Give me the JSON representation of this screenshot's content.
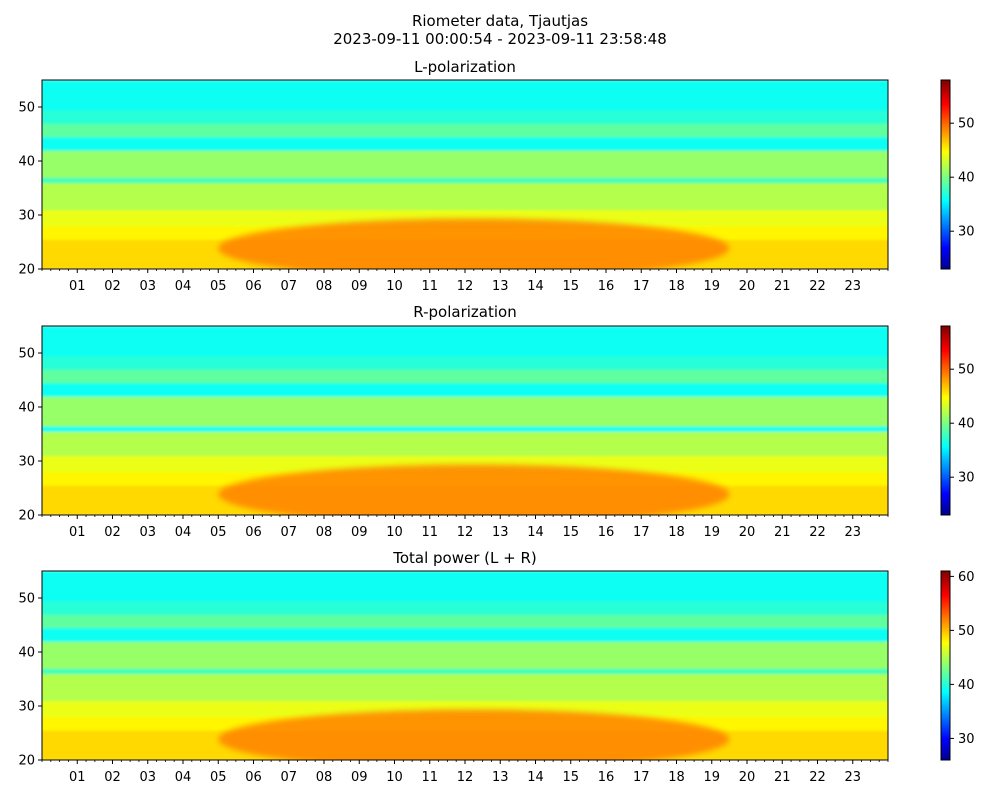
{
  "suptitle": {
    "line1": "Riometer data, Tjautjas",
    "line2": "2023-09-11 00:00:54 - 2023-09-11 23:58:48"
  },
  "chart_data": [
    {
      "type": "heatmap",
      "title": "L-polarization",
      "xlabel": "",
      "ylabel": "",
      "x_ticks": [
        "01",
        "02",
        "03",
        "04",
        "05",
        "06",
        "07",
        "08",
        "09",
        "10",
        "11",
        "12",
        "13",
        "14",
        "15",
        "16",
        "17",
        "18",
        "19",
        "20",
        "21",
        "22",
        "23"
      ],
      "xlim_hours": [
        0,
        24
      ],
      "y_ticks": [
        20,
        30,
        40,
        50
      ],
      "ylim": [
        20,
        55
      ],
      "colorbar": {
        "colormap": "jet",
        "range": [
          23,
          58
        ],
        "ticks": [
          30,
          40,
          50
        ]
      },
      "band_values_by_y": [
        {
          "y": [
            20,
            25.5
          ],
          "value": 46
        },
        {
          "y": [
            25.5,
            28
          ],
          "value": 45
        },
        {
          "y": [
            28,
            31
          ],
          "value": 44
        },
        {
          "y": [
            31,
            36
          ],
          "value": 42
        },
        {
          "y": [
            36,
            37
          ],
          "value": 38
        },
        {
          "y": [
            37,
            42
          ],
          "value": 41
        },
        {
          "y": [
            42,
            44.5
          ],
          "value": 36
        },
        {
          "y": [
            44.5,
            47
          ],
          "value": 39
        },
        {
          "y": [
            47,
            49.5
          ],
          "value": 37
        },
        {
          "y": [
            49.5,
            55
          ],
          "value": 36
        }
      ],
      "enhanced_region": {
        "hours": [
          5,
          19.5
        ],
        "y": [
          20,
          31
        ],
        "value": 49
      }
    },
    {
      "type": "heatmap",
      "title": "R-polarization",
      "xlabel": "",
      "ylabel": "",
      "x_ticks": [
        "01",
        "02",
        "03",
        "04",
        "05",
        "06",
        "07",
        "08",
        "09",
        "10",
        "11",
        "12",
        "13",
        "14",
        "15",
        "16",
        "17",
        "18",
        "19",
        "20",
        "21",
        "22",
        "23"
      ],
      "xlim_hours": [
        0,
        24
      ],
      "y_ticks": [
        20,
        30,
        40,
        50
      ],
      "ylim": [
        20,
        55
      ],
      "colorbar": {
        "colormap": "jet",
        "range": [
          23,
          58
        ],
        "ticks": [
          30,
          40,
          50
        ]
      },
      "band_values_by_y": [
        {
          "y": [
            20,
            25.5
          ],
          "value": 46
        },
        {
          "y": [
            25.5,
            28
          ],
          "value": 45
        },
        {
          "y": [
            28,
            31
          ],
          "value": 44
        },
        {
          "y": [
            31,
            35.5
          ],
          "value": 42
        },
        {
          "y": [
            35.5,
            36.5
          ],
          "value": 36
        },
        {
          "y": [
            36.5,
            42
          ],
          "value": 41
        },
        {
          "y": [
            42,
            44.5
          ],
          "value": 36
        },
        {
          "y": [
            44.5,
            47
          ],
          "value": 39
        },
        {
          "y": [
            47,
            49.5
          ],
          "value": 37
        },
        {
          "y": [
            49.5,
            55
          ],
          "value": 36
        }
      ],
      "enhanced_region": {
        "hours": [
          5,
          19.5
        ],
        "y": [
          20,
          31
        ],
        "value": 49
      }
    },
    {
      "type": "heatmap",
      "title": "Total power (L + R)",
      "xlabel": "",
      "ylabel": "",
      "x_ticks": [
        "01",
        "02",
        "03",
        "04",
        "05",
        "06",
        "07",
        "08",
        "09",
        "10",
        "11",
        "12",
        "13",
        "14",
        "15",
        "16",
        "17",
        "18",
        "19",
        "20",
        "21",
        "22",
        "23"
      ],
      "xlim_hours": [
        0,
        24
      ],
      "y_ticks": [
        20,
        30,
        40,
        50
      ],
      "ylim": [
        20,
        55
      ],
      "colorbar": {
        "colormap": "jet",
        "range": [
          26,
          61
        ],
        "ticks": [
          30,
          40,
          50,
          60
        ]
      },
      "band_values_by_y": [
        {
          "y": [
            20,
            25.5
          ],
          "value": 49
        },
        {
          "y": [
            25.5,
            28
          ],
          "value": 48
        },
        {
          "y": [
            28,
            31
          ],
          "value": 47
        },
        {
          "y": [
            31,
            36
          ],
          "value": 45
        },
        {
          "y": [
            36,
            37
          ],
          "value": 41
        },
        {
          "y": [
            37,
            42
          ],
          "value": 44
        },
        {
          "y": [
            42,
            44.5
          ],
          "value": 39
        },
        {
          "y": [
            44.5,
            47
          ],
          "value": 42
        },
        {
          "y": [
            47,
            49.5
          ],
          "value": 40
        },
        {
          "y": [
            49.5,
            55
          ],
          "value": 39
        }
      ],
      "enhanced_region": {
        "hours": [
          5,
          19.5
        ],
        "y": [
          20,
          31
        ],
        "value": 52
      }
    }
  ]
}
